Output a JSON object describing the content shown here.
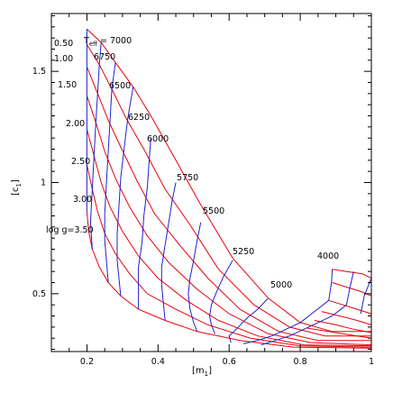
{
  "chart_data": {
    "type": "line",
    "title": "",
    "xlabel": "[m",
    "xlabel_sub": "1",
    "xlabel_close": "]",
    "ylabel": "[c",
    "ylabel_sub": "1",
    "ylabel_close": "]",
    "xlim": [
      0.1,
      1.0
    ],
    "ylim": [
      0.24,
      1.76
    ],
    "x_ticks": [
      {
        "value": 0.2,
        "label": "0.2"
      },
      {
        "value": 0.4,
        "label": "0.4"
      },
      {
        "value": 0.6,
        "label": "0.6"
      },
      {
        "value": 0.8,
        "label": "0.8"
      },
      {
        "value": 1.0,
        "label": "1"
      }
    ],
    "y_ticks": [
      {
        "value": 0.5,
        "label": "0.5"
      },
      {
        "value": 1.0,
        "label": "1"
      },
      {
        "value": 1.5,
        "label": "1.5"
      }
    ],
    "grid": false,
    "colors": {
      "constant_logg": "#e8000b",
      "constant_teff": "#1f1fd0",
      "axes": "#000000"
    },
    "teff_title": {
      "main": "T",
      "sub": "eff",
      "rest": " = 7000"
    },
    "teff_labels": [
      "6750",
      "6500",
      "6250",
      "6000",
      "5750",
      "5500",
      "5250",
      "5000",
      "4000"
    ],
    "logg_labels": [
      "0.50",
      "1.00",
      "1.50",
      "2.00",
      "2.50",
      "3.00",
      "log g=3.50"
    ],
    "red_curves": [
      {
        "name": "log g = 0.50",
        "points": [
          [
            0.2,
            1.69
          ],
          [
            0.24,
            1.63
          ],
          [
            0.28,
            1.54
          ],
          [
            0.33,
            1.43
          ],
          [
            0.38,
            1.3
          ],
          [
            0.45,
            1.1
          ],
          [
            0.52,
            0.9
          ],
          [
            0.61,
            0.66
          ],
          [
            0.71,
            0.48
          ],
          [
            0.8,
            0.37
          ],
          [
            0.89,
            0.33
          ],
          [
            1.0,
            0.33
          ]
        ]
      },
      {
        "name": "log g = 1.00",
        "points": [
          [
            0.2,
            1.62
          ],
          [
            0.235,
            1.53
          ],
          [
            0.27,
            1.42
          ],
          [
            0.31,
            1.29
          ],
          [
            0.36,
            1.15
          ],
          [
            0.42,
            0.97
          ],
          [
            0.49,
            0.81
          ],
          [
            0.57,
            0.61
          ],
          [
            0.67,
            0.45
          ],
          [
            0.77,
            0.35
          ],
          [
            0.87,
            0.31
          ],
          [
            1.0,
            0.31
          ]
        ]
      },
      {
        "name": "log g = 1.50",
        "points": [
          [
            0.2,
            1.52
          ],
          [
            0.23,
            1.4
          ],
          [
            0.26,
            1.28
          ],
          [
            0.295,
            1.16
          ],
          [
            0.34,
            1.01
          ],
          [
            0.39,
            0.86
          ],
          [
            0.46,
            0.72
          ],
          [
            0.54,
            0.57
          ],
          [
            0.63,
            0.43
          ],
          [
            0.74,
            0.33
          ],
          [
            0.85,
            0.29
          ],
          [
            1.0,
            0.29
          ]
        ]
      },
      {
        "name": "log g = 2.00",
        "points": [
          [
            0.2,
            1.39
          ],
          [
            0.225,
            1.27
          ],
          [
            0.25,
            1.14
          ],
          [
            0.28,
            1.02
          ],
          [
            0.32,
            0.89
          ],
          [
            0.37,
            0.76
          ],
          [
            0.43,
            0.64
          ],
          [
            0.51,
            0.52
          ],
          [
            0.6,
            0.41
          ],
          [
            0.71,
            0.32
          ],
          [
            0.83,
            0.28
          ],
          [
            1.0,
            0.27
          ]
        ]
      },
      {
        "name": "log g = 2.50",
        "points": [
          [
            0.2,
            1.24
          ],
          [
            0.22,
            1.12
          ],
          [
            0.24,
            1.0
          ],
          [
            0.265,
            0.89
          ],
          [
            0.3,
            0.78
          ],
          [
            0.345,
            0.67
          ],
          [
            0.4,
            0.57
          ],
          [
            0.48,
            0.47
          ],
          [
            0.57,
            0.38
          ],
          [
            0.68,
            0.31
          ],
          [
            0.81,
            0.27
          ],
          [
            1.0,
            0.265
          ]
        ]
      },
      {
        "name": "log g = 3.00",
        "points": [
          [
            0.2,
            1.08
          ],
          [
            0.215,
            0.97
          ],
          [
            0.23,
            0.87
          ],
          [
            0.25,
            0.77
          ],
          [
            0.28,
            0.68
          ],
          [
            0.32,
            0.59
          ],
          [
            0.37,
            0.5
          ],
          [
            0.45,
            0.43
          ],
          [
            0.54,
            0.36
          ],
          [
            0.66,
            0.3
          ],
          [
            0.8,
            0.265
          ],
          [
            1.0,
            0.26
          ]
        ]
      },
      {
        "name": "log g = 3.50",
        "points": [
          [
            0.2,
            0.87
          ],
          [
            0.205,
            0.78
          ],
          [
            0.215,
            0.7
          ],
          [
            0.235,
            0.62
          ],
          [
            0.26,
            0.55
          ],
          [
            0.295,
            0.49
          ],
          [
            0.345,
            0.43
          ],
          [
            0.42,
            0.38
          ],
          [
            0.51,
            0.33
          ],
          [
            0.63,
            0.29
          ],
          [
            0.78,
            0.26
          ],
          [
            1.0,
            0.255
          ]
        ]
      },
      {
        "name": "4000 group",
        "points": [
          [
            0.89,
            0.61
          ],
          [
            0.93,
            0.6
          ],
          [
            0.975,
            0.59
          ],
          [
            1.0,
            0.57
          ]
        ]
      },
      {
        "name": "4000 group",
        "points": [
          [
            0.89,
            0.55
          ],
          [
            0.93,
            0.53
          ],
          [
            0.97,
            0.51
          ],
          [
            1.0,
            0.49
          ]
        ]
      },
      {
        "name": "4000 group",
        "points": [
          [
            0.88,
            0.47
          ],
          [
            0.92,
            0.45
          ],
          [
            0.96,
            0.43
          ],
          [
            1.0,
            0.41
          ]
        ]
      },
      {
        "name": "4000 group",
        "points": [
          [
            0.86,
            0.42
          ],
          [
            0.91,
            0.4
          ],
          [
            0.96,
            0.38
          ],
          [
            1.0,
            0.36
          ]
        ]
      },
      {
        "name": "4000 group",
        "points": [
          [
            0.84,
            0.38
          ],
          [
            0.9,
            0.36
          ],
          [
            0.95,
            0.34
          ],
          [
            1.0,
            0.325
          ]
        ]
      },
      {
        "name": "4000 group",
        "points": [
          [
            0.82,
            0.345
          ],
          [
            0.88,
            0.33
          ],
          [
            0.94,
            0.315
          ],
          [
            1.0,
            0.3
          ]
        ]
      }
    ],
    "blue_curves": [
      {
        "name": "Teff = 7000",
        "points": [
          [
            0.2,
            1.69
          ],
          [
            0.2,
            1.62
          ],
          [
            0.2,
            1.52
          ],
          [
            0.2,
            1.39
          ],
          [
            0.2,
            1.24
          ],
          [
            0.2,
            1.08
          ],
          [
            0.2,
            0.87
          ]
        ]
      },
      {
        "name": "Teff = 6750",
        "points": [
          [
            0.24,
            1.63
          ],
          [
            0.235,
            1.53
          ],
          [
            0.23,
            1.4
          ],
          [
            0.225,
            1.27
          ],
          [
            0.22,
            1.12
          ],
          [
            0.215,
            0.97
          ],
          [
            0.21,
            0.82
          ],
          [
            0.215,
            0.7
          ]
        ]
      },
      {
        "name": "Teff = 6500",
        "points": [
          [
            0.28,
            1.54
          ],
          [
            0.27,
            1.42
          ],
          [
            0.265,
            1.28
          ],
          [
            0.26,
            1.14
          ],
          [
            0.255,
            1.0
          ],
          [
            0.25,
            0.86
          ],
          [
            0.25,
            0.74
          ],
          [
            0.26,
            0.55
          ]
        ]
      },
      {
        "name": "Teff = 6250",
        "points": [
          [
            0.33,
            1.43
          ],
          [
            0.315,
            1.29
          ],
          [
            0.305,
            1.16
          ],
          [
            0.295,
            1.02
          ],
          [
            0.29,
            0.89
          ],
          [
            0.285,
            0.77
          ],
          [
            0.285,
            0.65
          ],
          [
            0.295,
            0.49
          ]
        ]
      },
      {
        "name": "Teff = 6000",
        "points": [
          [
            0.38,
            1.2
          ],
          [
            0.375,
            1.1
          ],
          [
            0.37,
            0.98
          ],
          [
            0.36,
            0.85
          ],
          [
            0.355,
            0.73
          ],
          [
            0.345,
            0.62
          ],
          [
            0.345,
            0.52
          ],
          [
            0.345,
            0.43
          ]
        ]
      },
      {
        "name": "Teff = 5750",
        "points": [
          [
            0.45,
            1.0
          ],
          [
            0.44,
            0.92
          ],
          [
            0.43,
            0.82
          ],
          [
            0.42,
            0.72
          ],
          [
            0.41,
            0.62
          ],
          [
            0.41,
            0.54
          ],
          [
            0.415,
            0.46
          ],
          [
            0.42,
            0.38
          ]
        ]
      },
      {
        "name": "Teff = 5500",
        "points": [
          [
            0.52,
            0.82
          ],
          [
            0.51,
            0.74
          ],
          [
            0.5,
            0.65
          ],
          [
            0.49,
            0.57
          ],
          [
            0.485,
            0.5
          ],
          [
            0.49,
            0.43
          ],
          [
            0.5,
            0.37
          ],
          [
            0.51,
            0.33
          ]
        ]
      },
      {
        "name": "Teff = 5250",
        "points": [
          [
            0.61,
            0.65
          ],
          [
            0.585,
            0.58
          ],
          [
            0.565,
            0.51
          ],
          [
            0.55,
            0.45
          ],
          [
            0.545,
            0.4
          ],
          [
            0.55,
            0.36
          ],
          [
            0.56,
            0.32
          ]
        ]
      },
      {
        "name": "Teff = 5000",
        "points": [
          [
            0.71,
            0.48
          ],
          [
            0.68,
            0.43
          ],
          [
            0.65,
            0.39
          ],
          [
            0.62,
            0.34
          ],
          [
            0.6,
            0.31
          ],
          [
            0.605,
            0.28
          ]
        ]
      },
      {
        "name": "Teff = 4000",
        "points": [
          [
            0.89,
            0.61
          ],
          [
            0.888,
            0.55
          ],
          [
            0.88,
            0.47
          ]
        ]
      },
      {
        "name": "Teff = 4000",
        "points": [
          [
            0.95,
            0.6
          ],
          [
            0.94,
            0.53
          ],
          [
            0.93,
            0.45
          ]
        ]
      },
      {
        "name": "Teff = 4000",
        "points": [
          [
            1.0,
            0.57
          ],
          [
            0.98,
            0.49
          ],
          [
            0.97,
            0.41
          ]
        ]
      },
      {
        "name": "Teff = 4000",
        "points": [
          [
            0.88,
            0.47
          ],
          [
            0.84,
            0.42
          ],
          [
            0.8,
            0.37
          ],
          [
            0.76,
            0.34
          ],
          [
            0.72,
            0.31
          ],
          [
            0.68,
            0.29
          ],
          [
            0.64,
            0.275
          ]
        ]
      },
      {
        "name": "Teff = 4000",
        "points": [
          [
            0.93,
            0.45
          ],
          [
            0.89,
            0.4
          ],
          [
            0.85,
            0.37
          ],
          [
            0.81,
            0.34
          ],
          [
            0.77,
            0.31
          ],
          [
            0.73,
            0.29
          ],
          [
            0.69,
            0.27
          ]
        ]
      }
    ]
  }
}
